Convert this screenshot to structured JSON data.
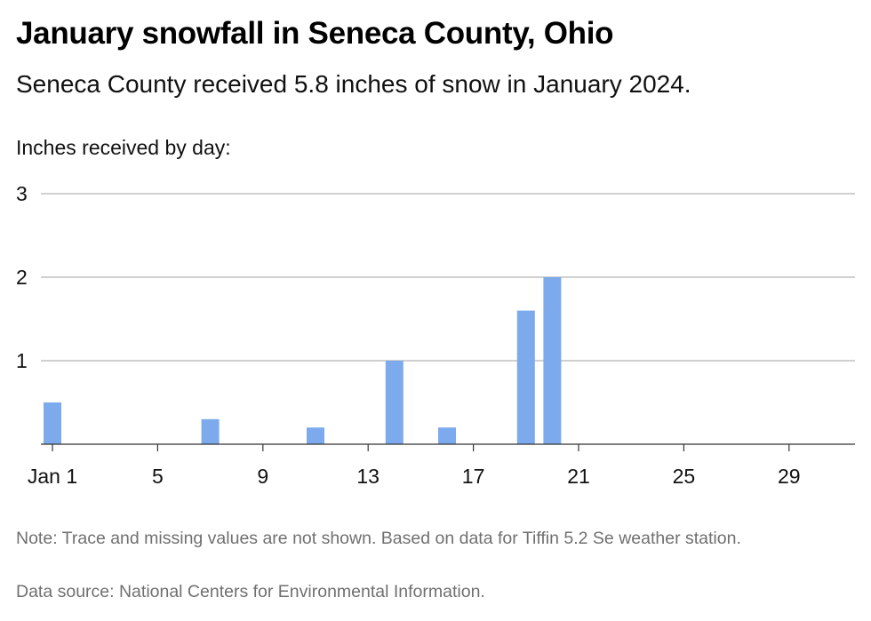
{
  "chart_data": {
    "type": "bar",
    "title": "January snowfall in Seneca County, Ohio",
    "subtitle": "Seneca County received 5.8 inches of snow in January 2024.",
    "ylabel": "Inches received by day:",
    "xlabel": "",
    "x": [
      1,
      7,
      11,
      14,
      16,
      19,
      20
    ],
    "values": [
      0.5,
      0.3,
      0.2,
      1.0,
      0.2,
      1.6,
      2.0
    ],
    "xlim": [
      1,
      31
    ],
    "ylim": [
      0,
      3
    ],
    "y_ticks": [
      "1",
      "2",
      "3"
    ],
    "x_ticks": [
      {
        "day": 1,
        "label": "Jan 1"
      },
      {
        "day": 5,
        "label": "5"
      },
      {
        "day": 9,
        "label": "9"
      },
      {
        "day": 13,
        "label": "13"
      },
      {
        "day": 17,
        "label": "17"
      },
      {
        "day": 21,
        "label": "21"
      },
      {
        "day": 25,
        "label": "25"
      },
      {
        "day": 29,
        "label": "29"
      }
    ],
    "grid": true,
    "bar_color": "#7caaed",
    "gridline_color": "#b3b3b3",
    "note": "Note: Trace and missing values are not shown. Based on data for Tiffin 5.2 Se weather station.",
    "source": "Data source: National Centers for Environmental Information."
  }
}
